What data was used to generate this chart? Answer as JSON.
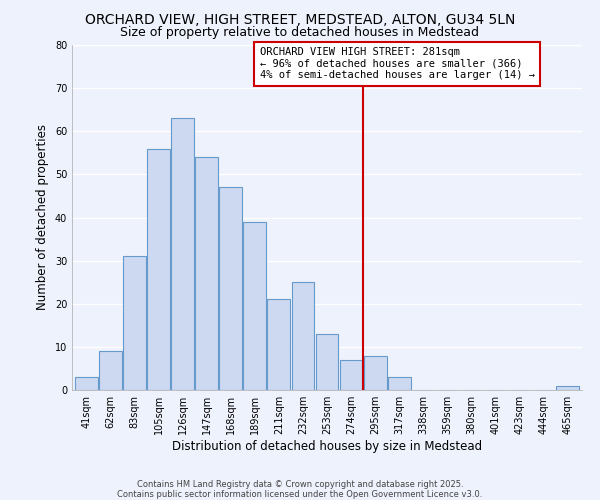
{
  "title": "ORCHARD VIEW, HIGH STREET, MEDSTEAD, ALTON, GU34 5LN",
  "subtitle": "Size of property relative to detached houses in Medstead",
  "xlabel": "Distribution of detached houses by size in Medstead",
  "ylabel": "Number of detached properties",
  "bar_color": "#ccd9f0",
  "bar_edge_color": "#6699cc",
  "bin_labels": [
    "41sqm",
    "62sqm",
    "83sqm",
    "105sqm",
    "126sqm",
    "147sqm",
    "168sqm",
    "189sqm",
    "211sqm",
    "232sqm",
    "253sqm",
    "274sqm",
    "295sqm",
    "317sqm",
    "338sqm",
    "359sqm",
    "380sqm",
    "401sqm",
    "423sqm",
    "444sqm",
    "465sqm"
  ],
  "bar_values": [
    3,
    9,
    31,
    56,
    63,
    54,
    47,
    39,
    21,
    25,
    13,
    7,
    8,
    3,
    0,
    0,
    0,
    0,
    0,
    0,
    1
  ],
  "vline_color": "#cc0000",
  "annotation_text": "ORCHARD VIEW HIGH STREET: 281sqm\n← 96% of detached houses are smaller (366)\n4% of semi-detached houses are larger (14) →",
  "annotation_box_color": "#ffffff",
  "annotation_box_edge": "#cc0000",
  "ylim": [
    0,
    80
  ],
  "yticks": [
    0,
    10,
    20,
    30,
    40,
    50,
    60,
    70,
    80
  ],
  "footer1": "Contains HM Land Registry data © Crown copyright and database right 2025.",
  "footer2": "Contains public sector information licensed under the Open Government Licence v3.0.",
  "background_color": "#eef2fc",
  "grid_color": "#ffffff",
  "title_fontsize": 10,
  "subtitle_fontsize": 9,
  "tick_fontsize": 7,
  "ylabel_fontsize": 8.5,
  "xlabel_fontsize": 8.5,
  "annotation_fontsize": 7.5,
  "footer_fontsize": 6
}
